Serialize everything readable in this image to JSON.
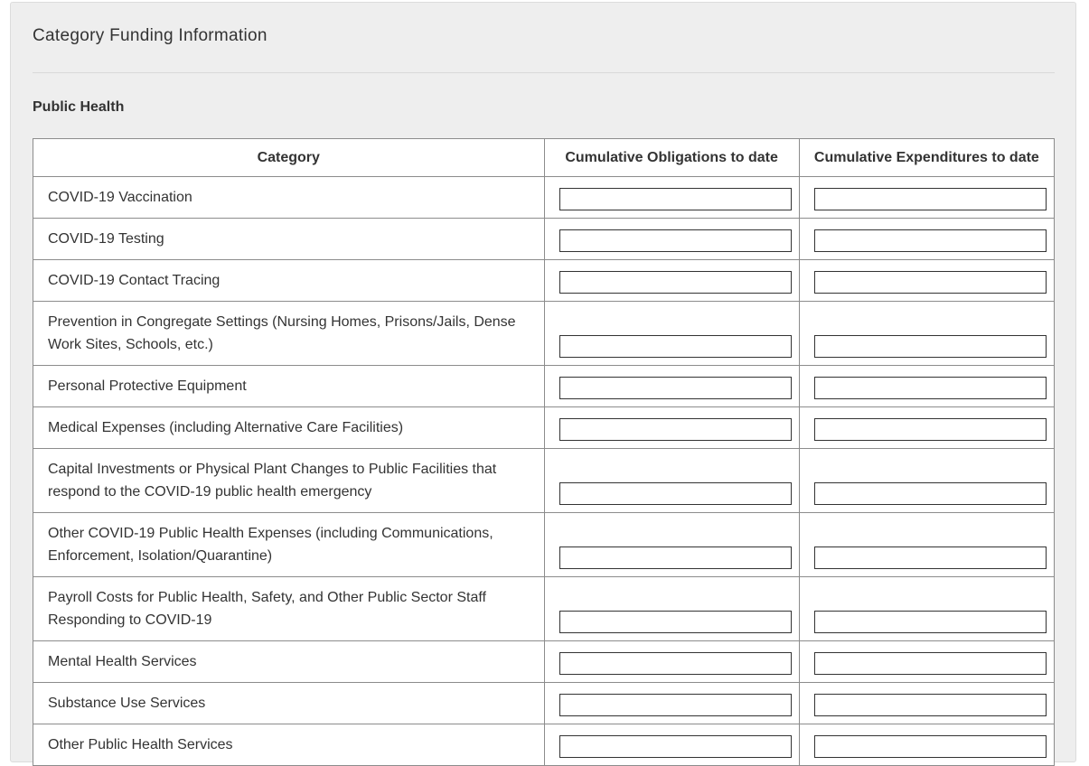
{
  "panel": {
    "title": "Category Funding Information"
  },
  "section": {
    "title": "Public Health"
  },
  "table": {
    "headers": [
      "Category",
      "Cumulative Obligations to date",
      "Cumulative Expenditures to date"
    ],
    "rows": [
      {
        "category": "COVID-19 Vaccination",
        "obligations": "",
        "expenditures": ""
      },
      {
        "category": "COVID-19 Testing",
        "obligations": "",
        "expenditures": ""
      },
      {
        "category": "COVID-19 Contact Tracing",
        "obligations": "",
        "expenditures": ""
      },
      {
        "category": "Prevention in Congregate Settings (Nursing Homes, Prisons/Jails, Dense Work Sites, Schools, etc.)",
        "obligations": "",
        "expenditures": ""
      },
      {
        "category": "Personal Protective Equipment",
        "obligations": "",
        "expenditures": ""
      },
      {
        "category": "Medical Expenses (including Alternative Care Facilities)",
        "obligations": "",
        "expenditures": ""
      },
      {
        "category": "Capital Investments or Physical Plant Changes to Public Facilities that respond to the COVID-19 public health emergency",
        "obligations": "",
        "expenditures": ""
      },
      {
        "category": "Other COVID-19 Public Health Expenses (including Communications, Enforcement, Isolation/Quarantine)",
        "obligations": "",
        "expenditures": ""
      },
      {
        "category": "Payroll Costs for Public Health, Safety, and Other Public Sector Staff Responding to COVID-19",
        "obligations": "",
        "expenditures": ""
      },
      {
        "category": "Mental Health Services",
        "obligations": "",
        "expenditures": ""
      },
      {
        "category": "Substance Use Services",
        "obligations": "",
        "expenditures": ""
      },
      {
        "category": "Other Public Health Services",
        "obligations": "",
        "expenditures": ""
      }
    ]
  }
}
